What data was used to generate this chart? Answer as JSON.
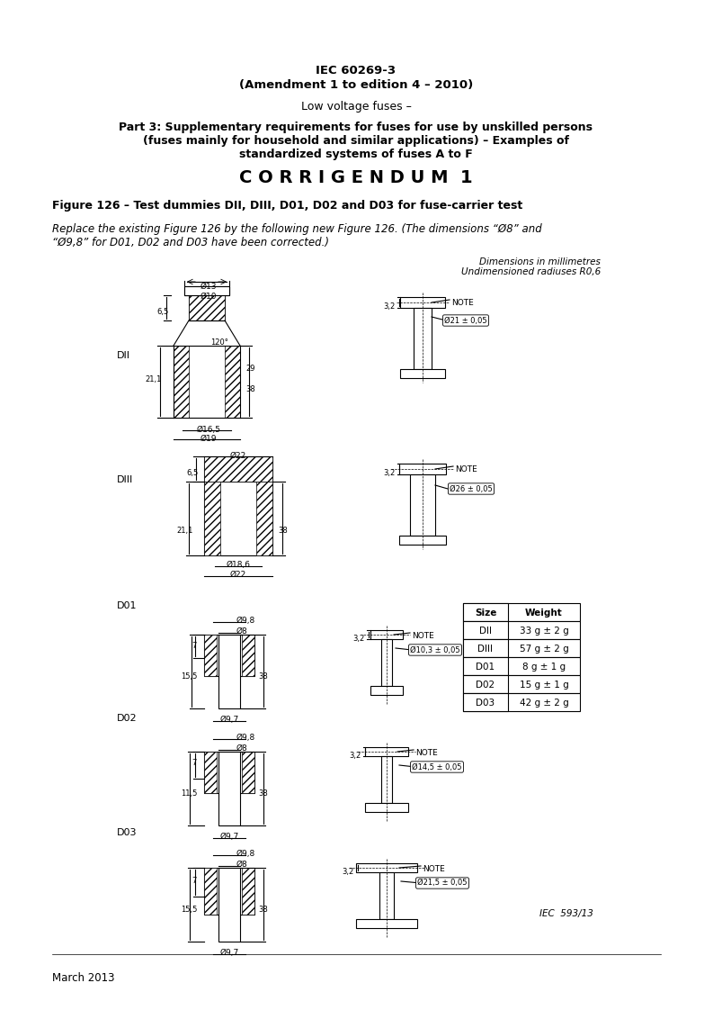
{
  "title1": "IEC 60269-3",
  "title2": "(Amendment 1 to edition 4 – 2010)",
  "title3": "Low voltage fuses –",
  "title4": "Part 3: Supplementary requirements for fuses for use by unskilled persons\n(fuses mainly for household and similar applications) – Examples of\nstandardized systems of fuses A to F",
  "corrigendum": "C O R R I G E N D U M  1",
  "fig_title": "Figure 126 – Test dummies DII, DIII, D01, D02 and D03 for fuse-carrier test",
  "replace_text": "Replace the existing Figure 126 by the following new Figure 126. (The dimensions “Ø8” and\n“Ø9,8” for D01, D02 and D03 have been corrected.)",
  "dim_note1": "Dimensions in millimetres",
  "dim_note2": "Undimensioned radiuses R0,6",
  "iec_ref": "IEC  593/13",
  "date": "March 2013",
  "bg_color": "#ffffff",
  "line_color": "#000000",
  "hatch_color": "#000000",
  "label_DII": "DII",
  "label_DIII": "DIII",
  "label_D01": "D01",
  "label_D02": "D02",
  "label_D03": "D03",
  "table_data": [
    [
      "Size",
      "Weight"
    ],
    [
      "DII",
      "33 g ± 2 g"
    ],
    [
      "DIII",
      "57 g ± 2 g"
    ],
    [
      "D01",
      "8 g ± 1 g"
    ],
    [
      "D02",
      "15 g ± 1 g"
    ],
    [
      "D03",
      "42 g ± 2 g"
    ]
  ]
}
